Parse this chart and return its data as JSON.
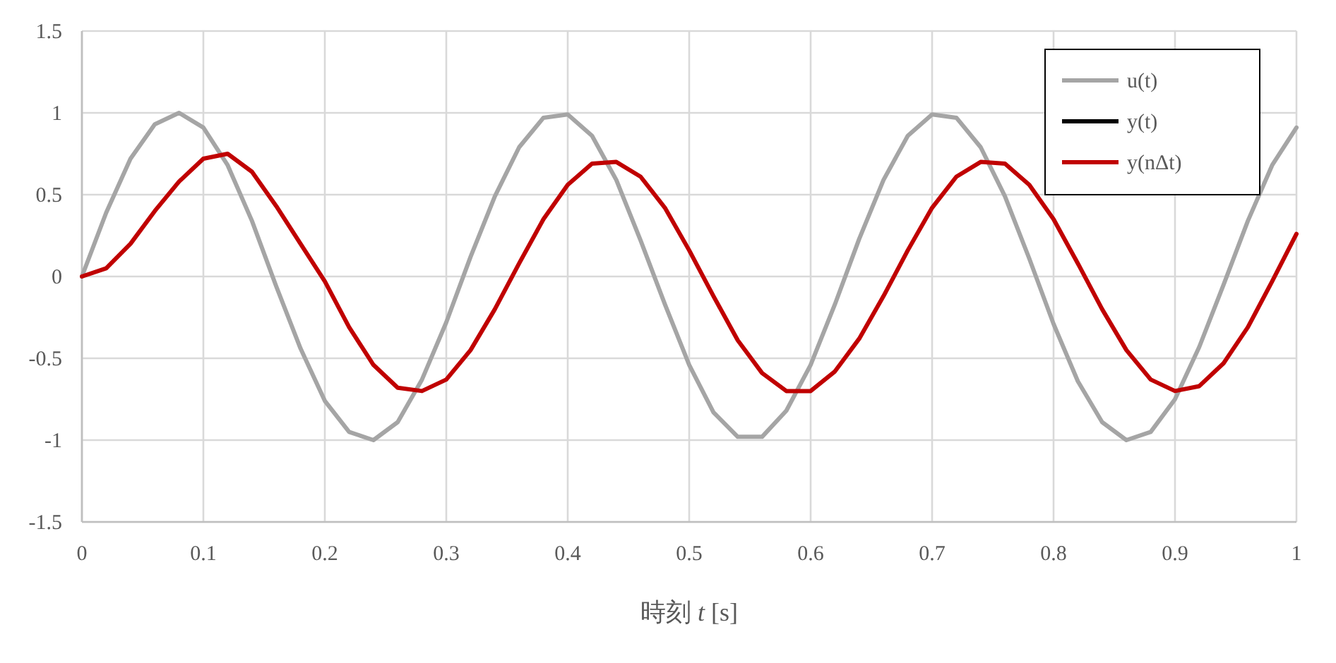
{
  "chart_data": {
    "type": "line",
    "xlabel": "時刻 *t* [s]",
    "x": [
      0,
      0.02,
      0.04,
      0.06,
      0.08,
      0.1,
      0.12,
      0.14,
      0.16,
      0.18,
      0.2,
      0.22,
      0.24,
      0.26,
      0.28,
      0.3,
      0.32,
      0.34,
      0.36,
      0.38,
      0.4,
      0.42,
      0.44,
      0.46,
      0.48,
      0.5,
      0.52,
      0.54,
      0.56,
      0.58,
      0.6,
      0.62,
      0.64,
      0.66,
      0.68,
      0.7,
      0.72,
      0.74,
      0.76,
      0.78,
      0.8,
      0.82,
      0.84,
      0.86,
      0.88,
      0.9,
      0.92,
      0.94,
      0.96,
      0.98,
      1
    ],
    "series": [
      {
        "name": "u(t)",
        "color": "#a5a5a5",
        "values": [
          0,
          0.39,
          0.72,
          0.93,
          1,
          0.91,
          0.68,
          0.34,
          -0.06,
          -0.44,
          -0.76,
          -0.95,
          -1,
          -0.89,
          -0.63,
          -0.28,
          0.12,
          0.49,
          0.79,
          0.97,
          0.99,
          0.86,
          0.59,
          0.22,
          -0.17,
          -0.54,
          -0.83,
          -0.98,
          -0.98,
          -0.82,
          -0.54,
          -0.17,
          0.23,
          0.59,
          0.86,
          0.99,
          0.97,
          0.79,
          0.49,
          0.11,
          -0.29,
          -0.64,
          -0.89,
          -1,
          -0.95,
          -0.75,
          -0.43,
          -0.05,
          0.34,
          0.68,
          0.91
        ]
      },
      {
        "name": "y(t)",
        "color": "#000000",
        "values": [
          null,
          null,
          null,
          null,
          null,
          null,
          null,
          null,
          null,
          null,
          null,
          null,
          null,
          null,
          null,
          null,
          null,
          null,
          null,
          null,
          null,
          null,
          null,
          null,
          null,
          null,
          null,
          null,
          null,
          null,
          null,
          null,
          null,
          null,
          null,
          null,
          null,
          null,
          null,
          null,
          null,
          null,
          null,
          null,
          null,
          null,
          null,
          null,
          null,
          null,
          null
        ]
      },
      {
        "name": "y(nΔt)",
        "color": "#c00000",
        "values": [
          0,
          0.05,
          0.2,
          0.4,
          0.58,
          0.72,
          0.75,
          0.64,
          0.43,
          0.2,
          -0.03,
          -0.31,
          -0.54,
          -0.68,
          -0.7,
          -0.63,
          -0.45,
          -0.2,
          0.08,
          0.35,
          0.56,
          0.69,
          0.7,
          0.61,
          0.42,
          0.16,
          -0.12,
          -0.39,
          -0.59,
          -0.7,
          -0.7,
          -0.58,
          -0.38,
          -0.12,
          0.16,
          0.42,
          0.61,
          0.7,
          0.69,
          0.56,
          0.35,
          0.08,
          -0.2,
          -0.45,
          -0.63,
          -0.7,
          -0.67,
          -0.53,
          -0.31,
          -0.03,
          0.26
        ]
      }
    ],
    "xlim": [
      0,
      1
    ],
    "ylim": [
      -1.5,
      1.5
    ],
    "xticks": [
      0,
      0.1,
      0.2,
      0.3,
      0.4,
      0.5,
      0.6,
      0.7,
      0.8,
      0.9,
      1
    ],
    "yticks": [
      -1.5,
      -1,
      -0.5,
      0,
      0.5,
      1,
      1.5
    ],
    "grid": true,
    "legend": "top right"
  }
}
